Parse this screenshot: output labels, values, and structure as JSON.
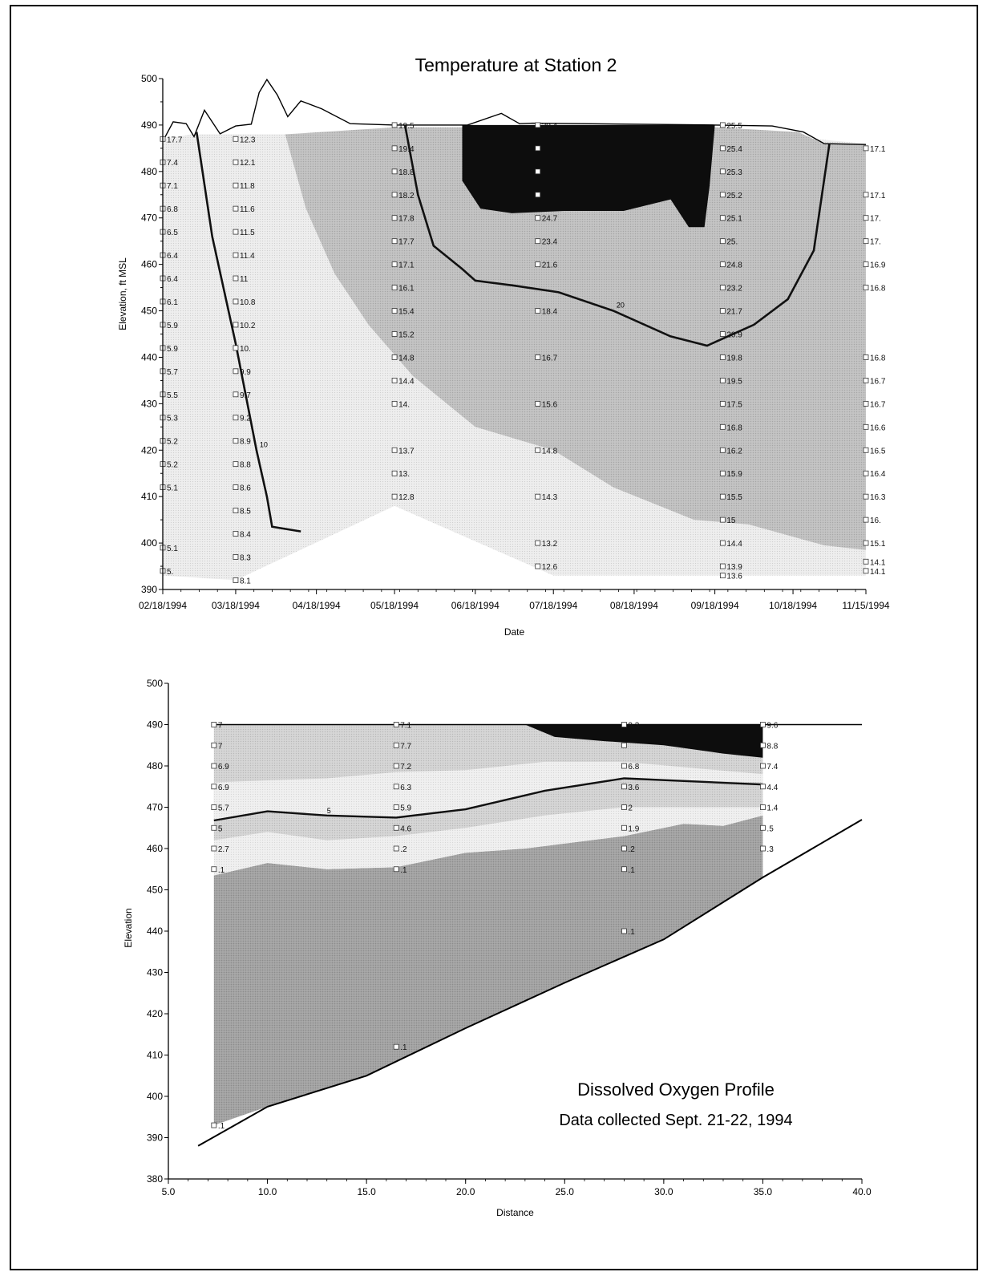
{
  "chart_data": [
    {
      "type": "area",
      "title": "Temperature at Station 2",
      "xlabel": "Date",
      "ylabel": "Elevation, ft MSL",
      "xlim": [
        "02/18/1994",
        "11/15/1994"
      ],
      "ylim": [
        390,
        500
      ],
      "xticks": [
        "02/18/1994",
        "03/18/1994",
        "04/18/1994",
        "05/18/1994",
        "06/18/1994",
        "07/18/1994",
        "08/18/1994",
        "09/18/1994",
        "10/18/1994",
        "11/15/1994"
      ],
      "yticks": [
        390,
        400,
        410,
        420,
        430,
        440,
        450,
        460,
        470,
        480,
        490,
        500
      ],
      "colors": {
        "band_low": "#ececec",
        "band_mid": "#bfbfbf",
        "band_high": "#0d0d0d",
        "line": "#111111"
      },
      "water_surface": [
        {
          "x": "02/18/1994",
          "y": 486.5
        },
        {
          "x": "02/22/1994",
          "y": 490.7
        },
        {
          "x": "02/27/1994",
          "y": 490.3
        },
        {
          "x": "03/02/1994",
          "y": 487.5
        },
        {
          "x": "03/06/1994",
          "y": 493.2
        },
        {
          "x": "03/12/1994",
          "y": 488.1
        },
        {
          "x": "03/18/1994",
          "y": 489.8
        },
        {
          "x": "03/24/1994",
          "y": 490.2
        },
        {
          "x": "03/27/1994",
          "y": 497.0
        },
        {
          "x": "03/30/1994",
          "y": 499.8
        },
        {
          "x": "04/03/1994",
          "y": 496.5
        },
        {
          "x": "04/07/1994",
          "y": 491.8
        },
        {
          "x": "04/12/1994",
          "y": 495.2
        },
        {
          "x": "04/20/1994",
          "y": 493.5
        },
        {
          "x": "05/01/1994",
          "y": 490.3
        },
        {
          "x": "05/18/1994",
          "y": 490.0
        },
        {
          "x": "06/15/1994",
          "y": 490.0
        },
        {
          "x": "06/28/1994",
          "y": 492.5
        },
        {
          "x": "07/05/1994",
          "y": 490.3
        },
        {
          "x": "07/10/1994",
          "y": 490.4
        },
        {
          "x": "09/18/1994",
          "y": 490.0
        },
        {
          "x": "10/10/1994",
          "y": 489.8
        },
        {
          "x": "10/22/1994",
          "y": 488.5
        },
        {
          "x": "10/30/1994",
          "y": 486.0
        },
        {
          "x": "11/15/1994",
          "y": 485.8
        }
      ],
      "contours": [
        {
          "label": "10",
          "points": [
            {
              "x": "03/03/1994",
              "y": 488.5
            },
            {
              "x": "03/09/1994",
              "y": 466.0
            },
            {
              "x": "03/18/1994",
              "y": 443.0
            },
            {
              "x": "03/26/1994",
              "y": 420.0
            },
            {
              "x": "03/30/1994",
              "y": 410.0
            },
            {
              "x": "04/01/1994",
              "y": 403.5
            },
            {
              "x": "04/12/1994",
              "y": 402.5
            }
          ]
        },
        {
          "label": "20",
          "points": [
            {
              "x": "05/22/1994",
              "y": 490.0
            },
            {
              "x": "05/27/1994",
              "y": 475.0
            },
            {
              "x": "06/02/1994",
              "y": 464.0
            },
            {
              "x": "06/13/1994",
              "y": 459.0
            },
            {
              "x": "06/18/1994",
              "y": 456.5
            },
            {
              "x": "07/02/1994",
              "y": 455.5
            },
            {
              "x": "07/20/1994",
              "y": 454.0
            },
            {
              "x": "08/10/1994",
              "y": 450.0
            },
            {
              "x": "09/01/1994",
              "y": 444.5
            },
            {
              "x": "09/15/1994",
              "y": 442.5
            },
            {
              "x": "10/03/1994",
              "y": 447.0
            },
            {
              "x": "10/16/1994",
              "y": 452.5
            },
            {
              "x": "10/26/1994",
              "y": 463.0
            },
            {
              "x": "11/01/1994",
              "y": 486.0
            }
          ]
        }
      ],
      "stations": [
        {
          "x": "02/18/1994",
          "elevations": [
            487,
            482,
            477,
            472,
            467,
            462,
            457,
            452,
            447,
            442,
            437,
            432,
            427,
            422,
            417,
            412,
            399,
            394
          ],
          "labels": [
            "17.7",
            "7.4",
            "7.1",
            "6.8",
            "6.5",
            "6.4",
            "6.4",
            "6.1",
            "5.9",
            "5.9",
            "5.7",
            "5.5",
            "5.3",
            "5.2",
            "5.2",
            "5.1",
            "5.1",
            "5."
          ]
        },
        {
          "x": "03/18/1994",
          "elevations": [
            487,
            482,
            477,
            472,
            467,
            462,
            457,
            452,
            447,
            442,
            437,
            432,
            427,
            422,
            417,
            412,
            407,
            402,
            397,
            392
          ],
          "labels": [
            "12.3",
            "12.1",
            "11.8",
            "11.6",
            "11.5",
            "11.4",
            "11",
            "10.8",
            "10.2",
            "10.",
            "9.9",
            "9.7",
            "9.2",
            "8.9",
            "8.8",
            "8.6",
            "8.5",
            "8.4",
            "8.3",
            "8.1"
          ]
        },
        {
          "x": "05/18/1994",
          "elevations": [
            490,
            485,
            480,
            475,
            470,
            465,
            460,
            455,
            450,
            445,
            440,
            435,
            430,
            420,
            415,
            410
          ],
          "labels": [
            "19.5",
            "19.4",
            "18.8",
            "18.2",
            "17.8",
            "17.7",
            "17.1",
            "16.1",
            "15.4",
            "15.2",
            "14.8",
            "14.4",
            "14.",
            "13.7",
            "13.",
            "12.8"
          ]
        },
        {
          "x": "07/12/1994",
          "elevations": [
            490,
            485,
            480,
            475,
            470,
            465,
            460,
            450,
            440,
            430,
            420,
            410,
            400,
            395
          ],
          "labels": [
            "20.4",
            "",
            "",
            "",
            "24.7",
            "23.4",
            "21.6",
            "18.4",
            "16.7",
            "15.6",
            "14.8",
            "14.3",
            "13.2",
            "12.6"
          ]
        },
        {
          "x": "09/21/1994",
          "elevations": [
            490,
            485,
            480,
            475,
            470,
            465,
            460,
            455,
            450,
            445,
            440,
            435,
            430,
            425,
            420,
            415,
            410,
            405,
            400,
            395,
            393
          ],
          "labels": [
            "25.5",
            "25.4",
            "25.3",
            "25.2",
            "25.1",
            "25.",
            "24.8",
            "23.2",
            "21.7",
            "20.9",
            "19.8",
            "19.5",
            "17.5",
            "16.8",
            "16.2",
            "15.9",
            "15.5",
            "15",
            "14.4",
            "13.9",
            "13.6"
          ]
        },
        {
          "x": "11/15/1994",
          "elevations": [
            485,
            475,
            470,
            465,
            460,
            455,
            440,
            435,
            430,
            425,
            420,
            415,
            410,
            405,
            400,
            396,
            394
          ],
          "labels": [
            "17.1",
            "17.1",
            "17.",
            "17.",
            "16.9",
            "16.8",
            "16.8",
            "16.7",
            "16.7",
            "16.6",
            "16.5",
            "16.4",
            "16.3",
            "16.",
            "15.1",
            "14.1",
            "14.1"
          ]
        }
      ]
    },
    {
      "type": "area",
      "title": "",
      "xlabel": "Distance",
      "ylabel": "Elevation",
      "xlim": [
        5.0,
        40.0
      ],
      "ylim": [
        380,
        500
      ],
      "xticks": [
        "5.0",
        "10.0",
        "15.0",
        "20.0",
        "25.0",
        "30.0",
        "35.0",
        "40.0"
      ],
      "yticks": [
        380,
        390,
        400,
        410,
        420,
        430,
        440,
        450,
        460,
        470,
        480,
        490,
        500
      ],
      "annotation": {
        "line1": "Dissolved Oxygen Profile",
        "line2": "Data collected Sept. 21-22, 1994"
      },
      "colors": {
        "band_low": "#a0a0a0",
        "band_mid": "#d2d2d2",
        "band_light": "#eeeeee",
        "band_high": "#0d0d0d",
        "line": "#111111"
      },
      "water_surface": {
        "y": 490,
        "x": [
          7.3,
          40.0
        ]
      },
      "bottom": [
        {
          "x": 6.5,
          "y": 388
        },
        {
          "x": 10.0,
          "y": 397.5
        },
        {
          "x": 15.0,
          "y": 405
        },
        {
          "x": 20.0,
          "y": 416.5
        },
        {
          "x": 25.0,
          "y": 427.5
        },
        {
          "x": 30.0,
          "y": 438
        },
        {
          "x": 35.0,
          "y": 453
        },
        {
          "x": 40.0,
          "y": 467
        }
      ],
      "contours": [
        {
          "label": "5",
          "points": [
            {
              "x": 7.3,
              "y": 466.8
            },
            {
              "x": 10.0,
              "y": 469.0
            },
            {
              "x": 13.0,
              "y": 468.0
            },
            {
              "x": 16.5,
              "y": 467.5
            },
            {
              "x": 20.0,
              "y": 469.5
            },
            {
              "x": 24.0,
              "y": 474.0
            },
            {
              "x": 28.0,
              "y": 477.0
            },
            {
              "x": 35.0,
              "y": 475.5
            }
          ]
        }
      ],
      "stations": [
        {
          "x": 7.3,
          "elevations": [
            490,
            485,
            480,
            475,
            470,
            465,
            460,
            455,
            393
          ],
          "labels": [
            "7",
            "7",
            "6.9",
            "6.9",
            "5.7",
            "5",
            "2.7",
            ".1",
            ".1"
          ]
        },
        {
          "x": 16.5,
          "elevations": [
            490,
            485,
            480,
            475,
            470,
            465,
            460,
            455,
            412
          ],
          "labels": [
            "7.1",
            "7.7",
            "7.2",
            "6.3",
            "5.9",
            "4.6",
            ".2",
            ".1",
            ".1"
          ]
        },
        {
          "x": 28.0,
          "elevations": [
            490,
            485,
            480,
            475,
            470,
            465,
            460,
            455,
            440
          ],
          "labels": [
            "9.3",
            "",
            "6.8",
            "3.6",
            "2",
            "1.9",
            ".2",
            ".1",
            ".1"
          ]
        },
        {
          "x": 35.0,
          "elevations": [
            490,
            485,
            480,
            475,
            470,
            465,
            460
          ],
          "labels": [
            "9.6",
            "8.8",
            "7.4",
            "4.4",
            "1.4",
            ".5",
            ".3"
          ]
        }
      ]
    }
  ]
}
